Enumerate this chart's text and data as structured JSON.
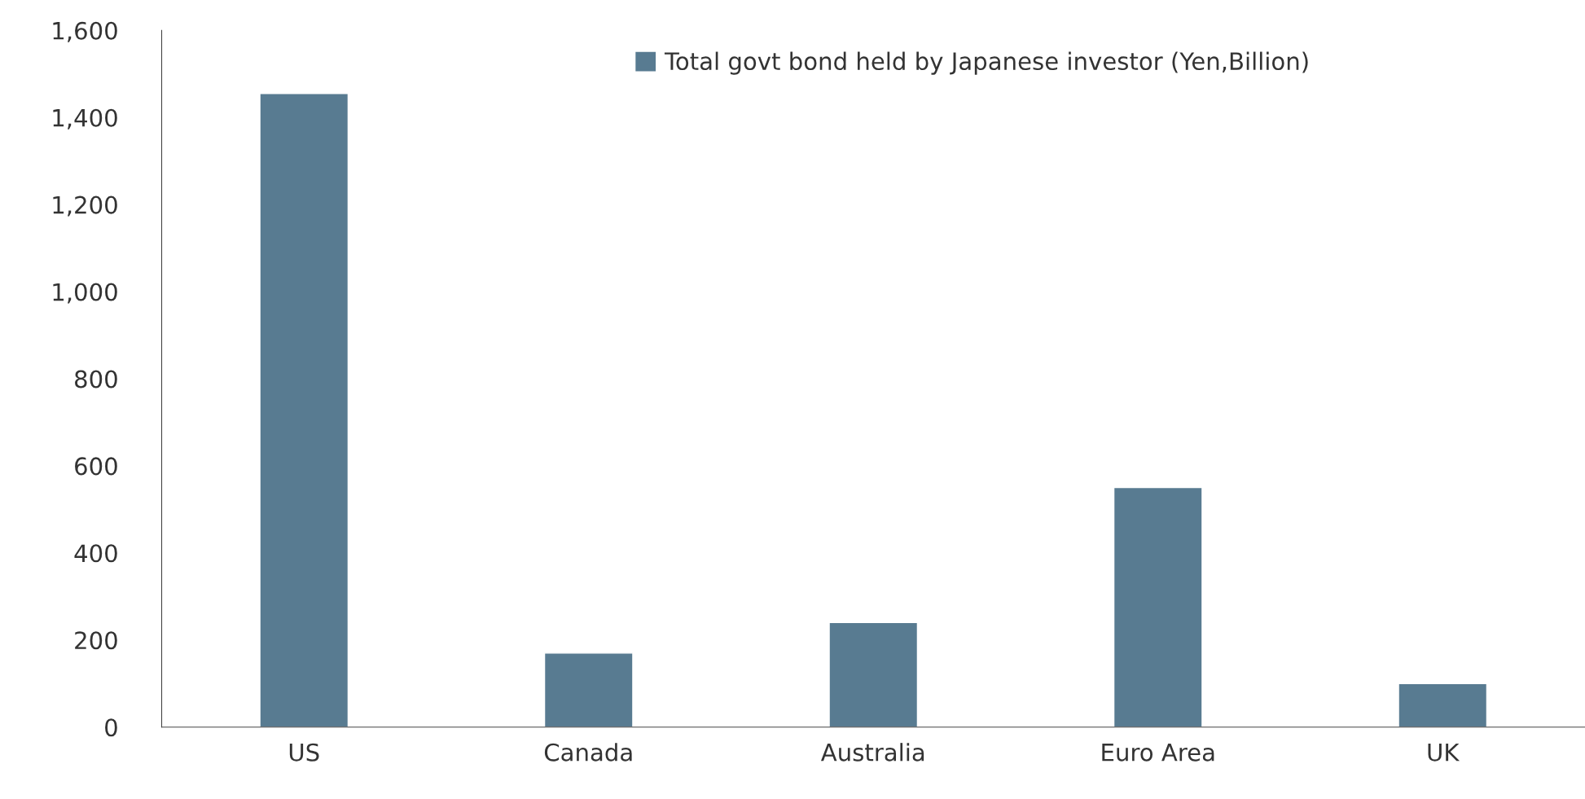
{
  "chart_data": {
    "type": "bar",
    "categories": [
      "US",
      "Canada",
      "Australia",
      "Euro Area",
      "UK"
    ],
    "series": [
      {
        "name": "Total govt bond held by Japanese investor (Yen,Billion)",
        "color": "#587b91",
        "values": [
          1455,
          170,
          240,
          550,
          100
        ]
      }
    ],
    "ylim": [
      0,
      1600
    ],
    "yticks": [
      0,
      {
        "value": 200,
        "label": "200"
      },
      {
        "value": 400,
        "label": "400"
      },
      {
        "value": 600,
        "label": "600"
      },
      {
        "value": 800,
        "label": "800"
      },
      {
        "value": 1000,
        "label": "1,000"
      },
      {
        "value": 1200,
        "label": "1,200"
      },
      {
        "value": 1400,
        "label": "1,400"
      },
      {
        "value": 1600,
        "label": "1,600"
      }
    ],
    "grid": false,
    "legend": "top"
  }
}
